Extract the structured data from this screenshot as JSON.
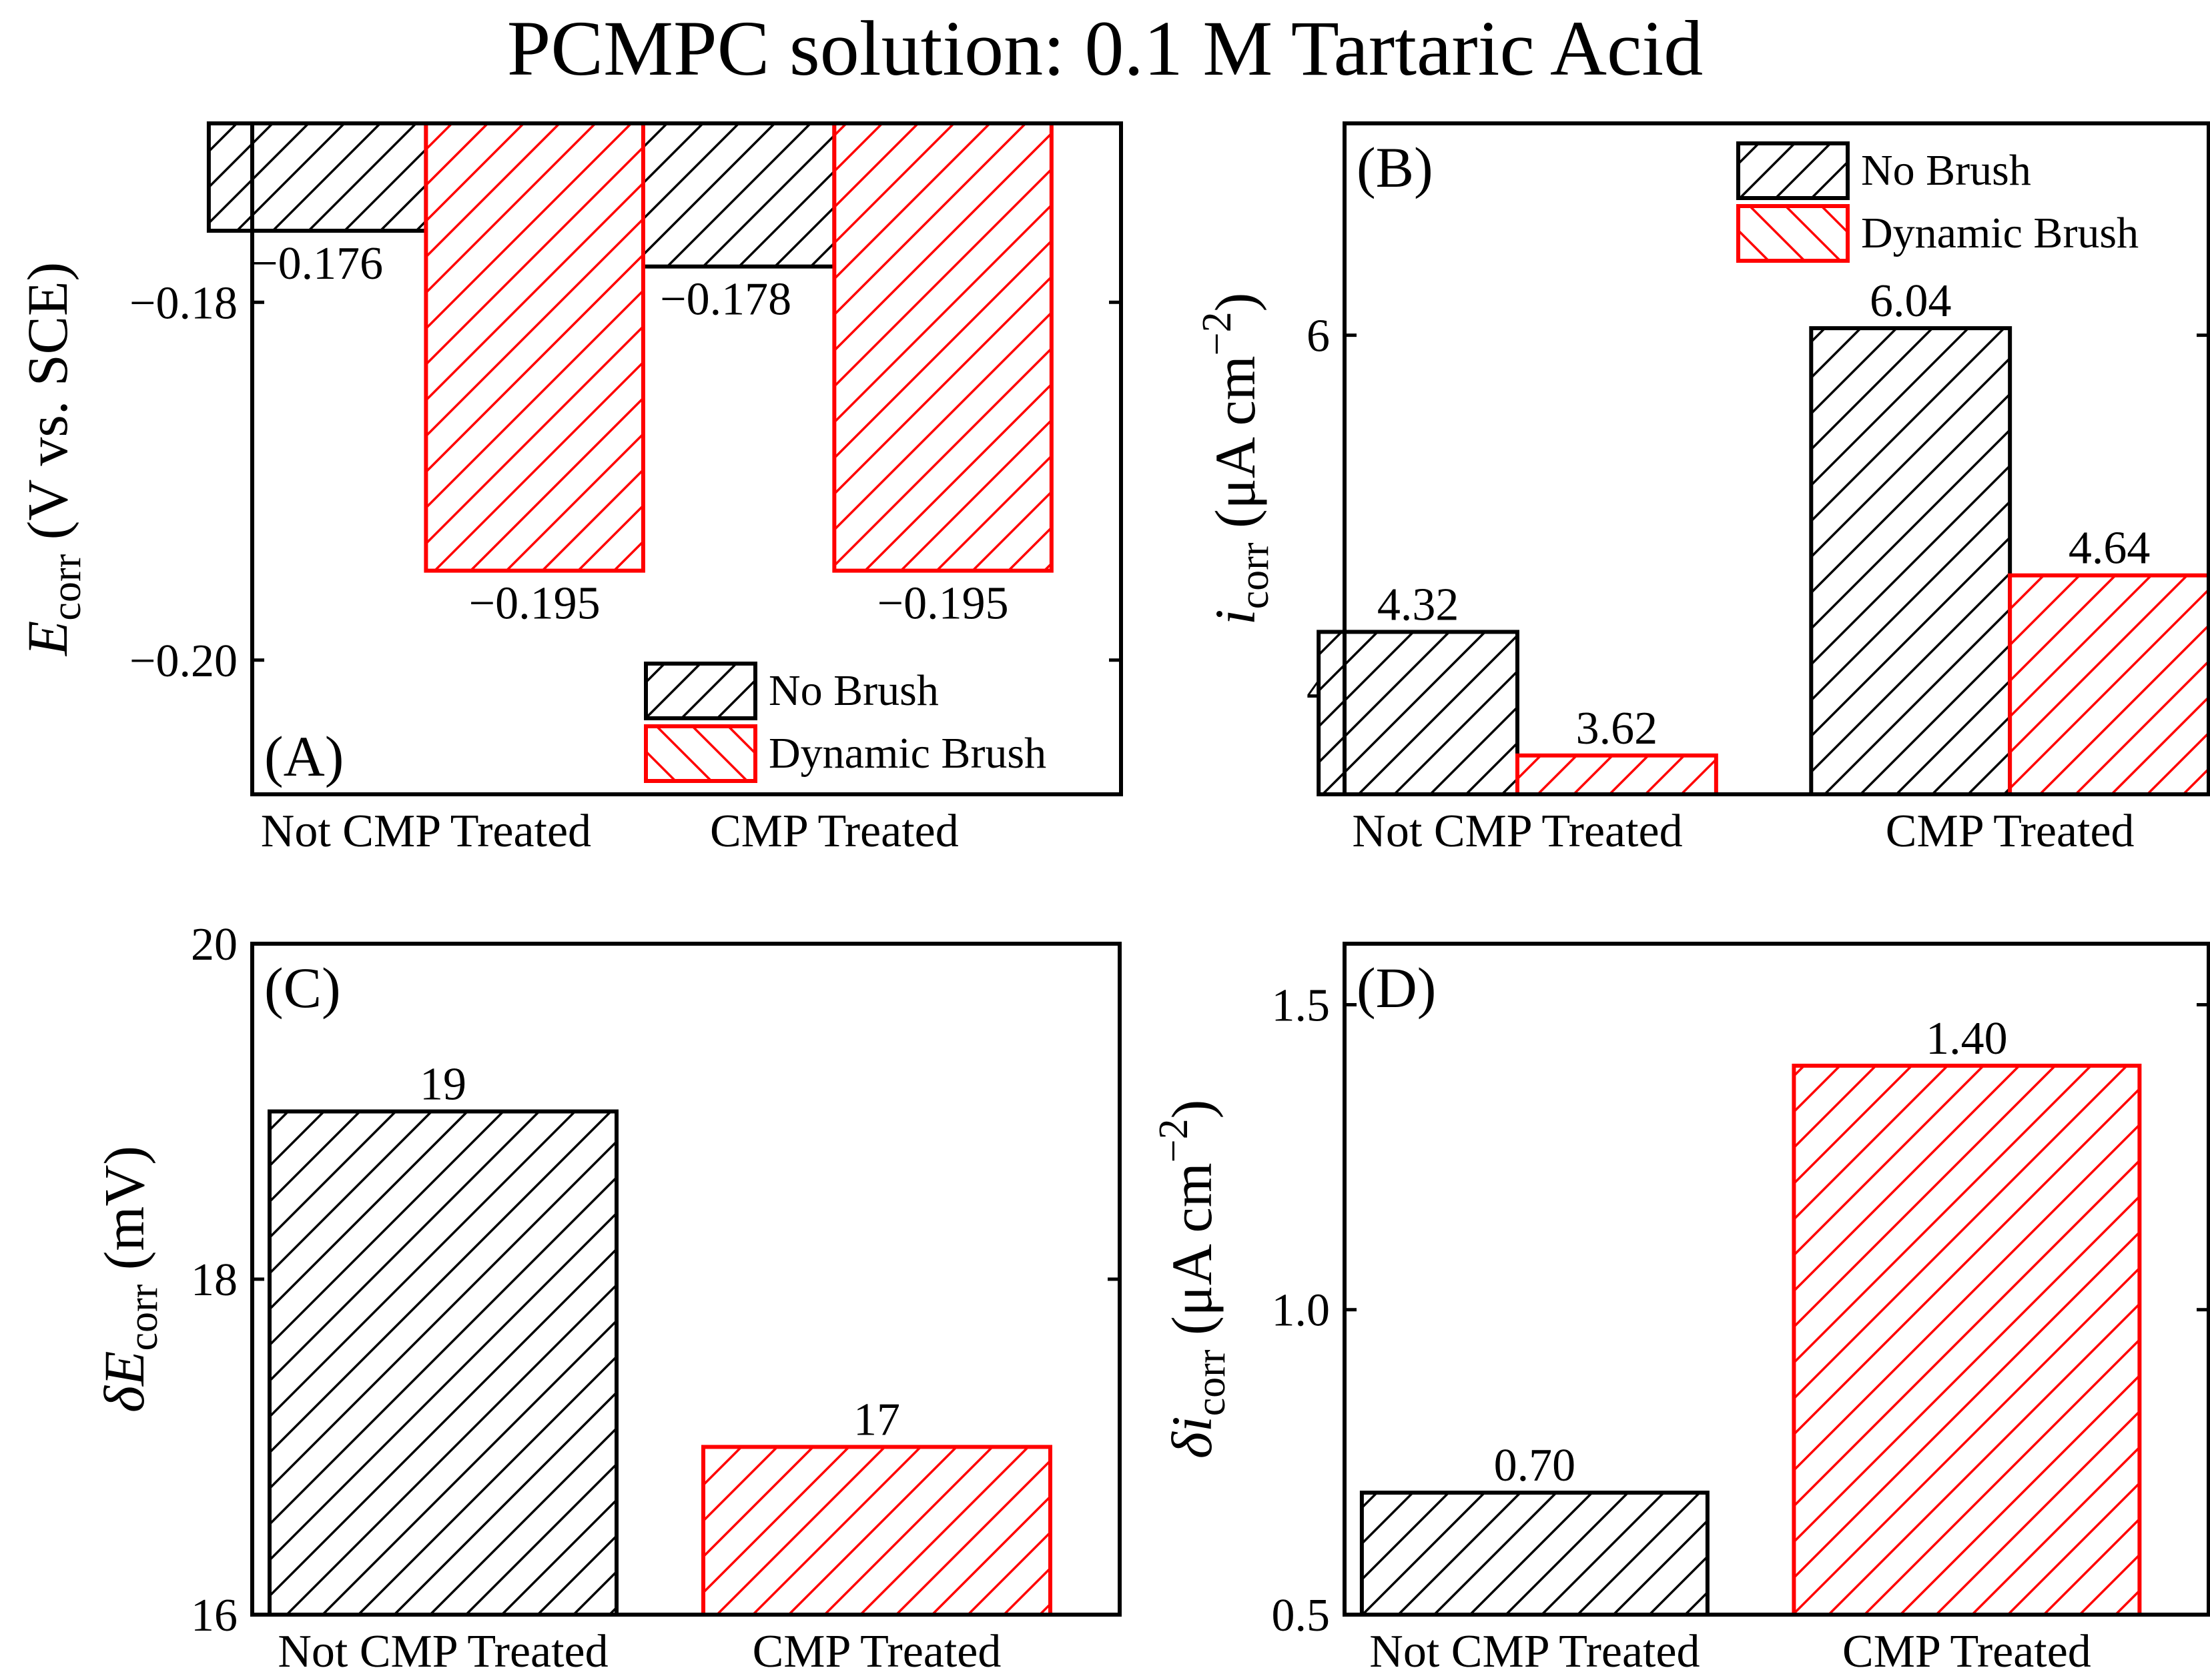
{
  "figure": {
    "title": "PCMPC solution: 0.1 M Tartaric Acid",
    "colors": {
      "no_brush": "#000000",
      "dynamic_brush": "#ff0000",
      "frame": "#000000"
    }
  },
  "chart_data": [
    {
      "id": "A",
      "panel_label": "(A)",
      "type": "bar",
      "categories": [
        "Not CMP Treated",
        "CMP Treated"
      ],
      "series": [
        {
          "name": "No Brush",
          "values": [
            -0.176,
            -0.178
          ],
          "labels": [
            "−0.176",
            "−0.178"
          ]
        },
        {
          "name": "Dynamic Brush",
          "values": [
            -0.195,
            -0.195
          ],
          "labels": [
            "−0.195",
            "−0.195"
          ]
        }
      ],
      "baseline": -0.17,
      "ylim": [
        -0.2075,
        -0.17
      ],
      "yticks": [
        -0.18,
        -0.2
      ],
      "ytick_labels": [
        "−0.18",
        "−0.20"
      ],
      "ylabel": {
        "main": "E",
        "sub": "corr",
        "rest": " (V vs. SCE)"
      },
      "legend": {
        "position": "bottom-right",
        "entries": [
          "No Brush",
          "Dynamic Brush"
        ]
      }
    },
    {
      "id": "B",
      "panel_label": "(B)",
      "type": "bar",
      "categories": [
        "Not CMP Treated",
        "CMP Treated"
      ],
      "series": [
        {
          "name": "No Brush",
          "values": [
            4.32,
            6.04
          ],
          "labels": [
            "4.32",
            "6.04"
          ]
        },
        {
          "name": "Dynamic Brush",
          "values": [
            3.62,
            4.64
          ],
          "labels": [
            "3.62",
            "4.64"
          ]
        }
      ],
      "baseline": 3.4,
      "ylim": [
        3.4,
        7.2
      ],
      "yticks": [
        4,
        6
      ],
      "ytick_labels": [
        "4",
        "6"
      ],
      "ylabel": {
        "main": "i",
        "sub": "corr",
        "rest": " (μA cm",
        "sup": "−2",
        "close": ")"
      },
      "legend": {
        "position": "top-right",
        "entries": [
          "No Brush",
          "Dynamic Brush"
        ]
      }
    },
    {
      "id": "C",
      "panel_label": "(C)",
      "type": "bar",
      "categories": [
        "Not CMP Treated",
        "CMP Treated"
      ],
      "values": [
        19,
        17
      ],
      "labels": [
        "19",
        "17"
      ],
      "bar_series": [
        "No Brush",
        "Dynamic Brush"
      ],
      "baseline": 16,
      "ylim": [
        16,
        20
      ],
      "yticks": [
        16,
        18,
        20
      ],
      "ytick_labels": [
        "16",
        "18",
        "20"
      ],
      "ylabel": {
        "prefix": "δ",
        "main": "E",
        "sub": "corr",
        "rest": " (mV)"
      }
    },
    {
      "id": "D",
      "panel_label": "(D)",
      "type": "bar",
      "categories": [
        "Not CMP Treated",
        "CMP Treated"
      ],
      "values": [
        0.7,
        1.4
      ],
      "labels": [
        "0.70",
        "1.40"
      ],
      "bar_series": [
        "No Brush",
        "Dynamic Brush"
      ],
      "baseline": 0.5,
      "ylim": [
        0.5,
        1.6
      ],
      "yticks": [
        0.5,
        1.0,
        1.5
      ],
      "ytick_labels": [
        "0.5",
        "1.0",
        "1.5"
      ],
      "ylabel": {
        "prefix": "δ",
        "main": "i",
        "sub": "corr",
        "rest": " (μA cm",
        "sup": "−2",
        "close": ")"
      }
    }
  ]
}
